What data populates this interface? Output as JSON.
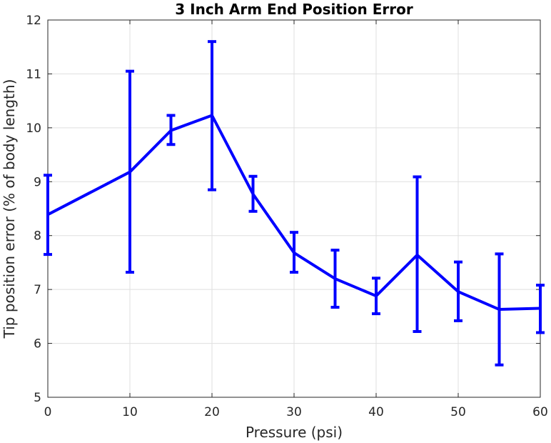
{
  "chart_data": {
    "type": "line",
    "title": "3 Inch Arm End Position Error",
    "xlabel": "Pressure (psi)",
    "ylabel": "Tip position error (% of body length)",
    "xlim": [
      0,
      60
    ],
    "ylim": [
      5,
      12
    ],
    "xticks": [
      "0",
      "10",
      "20",
      "30",
      "40",
      "50",
      "60"
    ],
    "yticks": [
      "5",
      "6",
      "7",
      "8",
      "9",
      "10",
      "11",
      "12"
    ],
    "grid": true,
    "series": [
      {
        "color": "#0000ff",
        "x": [
          0,
          10,
          15,
          20,
          25,
          30,
          35,
          40,
          45,
          50,
          55,
          60
        ],
        "y": [
          8.39,
          9.18,
          9.95,
          10.23,
          8.77,
          7.68,
          7.2,
          6.88,
          7.64,
          6.96,
          6.63,
          6.65
        ],
        "error_low": [
          7.65,
          7.32,
          9.69,
          8.85,
          8.45,
          7.32,
          6.67,
          6.55,
          6.22,
          6.42,
          5.6,
          6.2
        ],
        "error_high": [
          9.12,
          11.05,
          10.23,
          11.6,
          9.1,
          8.06,
          7.73,
          7.21,
          9.09,
          7.51,
          7.66,
          7.08
        ]
      }
    ]
  }
}
